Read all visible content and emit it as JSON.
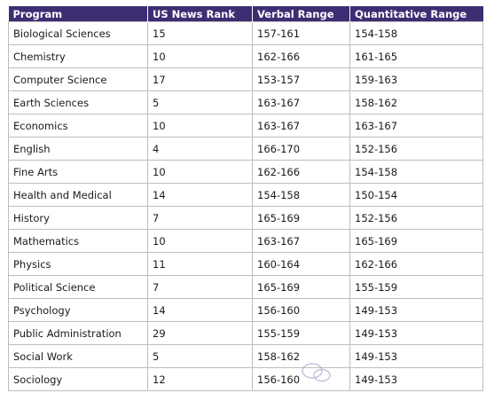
{
  "table": {
    "headers": [
      "Program",
      "US News Rank",
      "Verbal Range",
      "Quantitative Range"
    ],
    "rows": [
      [
        "Biological Sciences",
        "15",
        "157-161",
        "154-158"
      ],
      [
        "Chemistry",
        "10",
        "162-166",
        "161-165"
      ],
      [
        "Computer Science",
        "17",
        "153-157",
        "159-163"
      ],
      [
        "Earth Sciences",
        "5",
        "163-167",
        "158-162"
      ],
      [
        "Economics",
        "10",
        "163-167",
        "163-167"
      ],
      [
        "English",
        "4",
        "166-170",
        "152-156"
      ],
      [
        "Fine Arts",
        "10",
        "162-166",
        "154-158"
      ],
      [
        "Health and Medical",
        "14",
        "154-158",
        "150-154"
      ],
      [
        "History",
        "7",
        "165-169",
        "152-156"
      ],
      [
        "Mathematics",
        "10",
        "163-167",
        "165-169"
      ],
      [
        "Physics",
        "11",
        "160-164",
        "162-166"
      ],
      [
        "Political Science",
        "7",
        "165-169",
        "155-159"
      ],
      [
        "Psychology",
        "14",
        "156-160",
        "149-153"
      ],
      [
        "Public Administration",
        "29",
        "155-159",
        "149-153"
      ],
      [
        "Social Work",
        "5",
        "158-162",
        "149-153"
      ],
      [
        "Sociology",
        "12",
        "156-160",
        "149-153"
      ]
    ]
  },
  "colors": {
    "header_bg": "#3f2d73",
    "header_text": "#ffffff",
    "grid_line": "#bdbdbd"
  },
  "watermark": {
    "icon": "wechat-watermark-icon"
  }
}
